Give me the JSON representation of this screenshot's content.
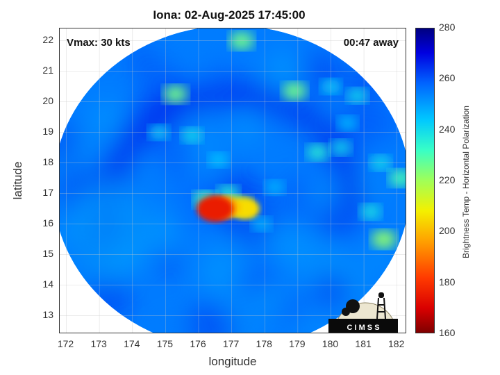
{
  "title": "Iona: 02-Aug-2025 17:45:00",
  "vmax_label": "Vmax: 30 kts",
  "away_label": "00:47 away",
  "logo_text": "C I M S S",
  "chart_data": {
    "type": "heatmap",
    "title": "Iona: 02-Aug-2025 17:45:00",
    "xlabel": "longitude",
    "ylabel": "latitude",
    "xlim": [
      171.8,
      182.3
    ],
    "ylim": [
      12.4,
      22.4
    ],
    "xticks": [
      "172",
      "173",
      "174",
      "175",
      "176",
      "177",
      "178",
      "179",
      "180",
      "181",
      "182"
    ],
    "yticks": [
      "13",
      "14",
      "15",
      "16",
      "17",
      "18",
      "19",
      "20",
      "21",
      "22"
    ],
    "colorbar": {
      "label": "Brightness Temp - Horizontal Polarization",
      "min": 160,
      "max": 280,
      "ticks": [
        "280",
        "260",
        "240",
        "220",
        "200",
        "180",
        "160"
      ]
    },
    "swath_center": [
      177.0,
      17.2
    ],
    "swath_radius_lon": 5.4,
    "swath_radius_lat": 5.3,
    "features": [
      {
        "lon": 176.5,
        "lat": 16.5,
        "value": 175
      },
      {
        "lon": 176.8,
        "lat": 16.55,
        "value": 200
      },
      {
        "lon": 177.2,
        "lat": 16.6,
        "value": 215
      },
      {
        "lon": 177.4,
        "lat": 16.5,
        "value": 205
      },
      {
        "lon": 176.2,
        "lat": 16.8,
        "value": 230
      },
      {
        "lon": 176.9,
        "lat": 17.0,
        "value": 235
      },
      {
        "lon": 175.3,
        "lat": 20.25,
        "value": 225
      },
      {
        "lon": 177.3,
        "lat": 22.0,
        "value": 225
      },
      {
        "lon": 178.9,
        "lat": 20.35,
        "value": 225
      },
      {
        "lon": 179.6,
        "lat": 18.35,
        "value": 235
      },
      {
        "lon": 180.3,
        "lat": 18.5,
        "value": 240
      },
      {
        "lon": 181.6,
        "lat": 15.5,
        "value": 222
      },
      {
        "lon": 181.2,
        "lat": 16.4,
        "value": 238
      },
      {
        "lon": 182.1,
        "lat": 17.5,
        "value": 230
      },
      {
        "lon": 174.8,
        "lat": 19.0,
        "value": 242
      },
      {
        "lon": 175.8,
        "lat": 18.9,
        "value": 240
      },
      {
        "lon": 176.6,
        "lat": 18.1,
        "value": 244
      },
      {
        "lon": 180.0,
        "lat": 20.5,
        "value": 242
      },
      {
        "lon": 180.8,
        "lat": 20.2,
        "value": 240
      },
      {
        "lon": 180.5,
        "lat": 19.3,
        "value": 245
      },
      {
        "lon": 181.5,
        "lat": 18.0,
        "value": 240
      },
      {
        "lon": 178.3,
        "lat": 17.2,
        "value": 246
      },
      {
        "lon": 177.9,
        "lat": 16.0,
        "value": 246
      }
    ]
  }
}
